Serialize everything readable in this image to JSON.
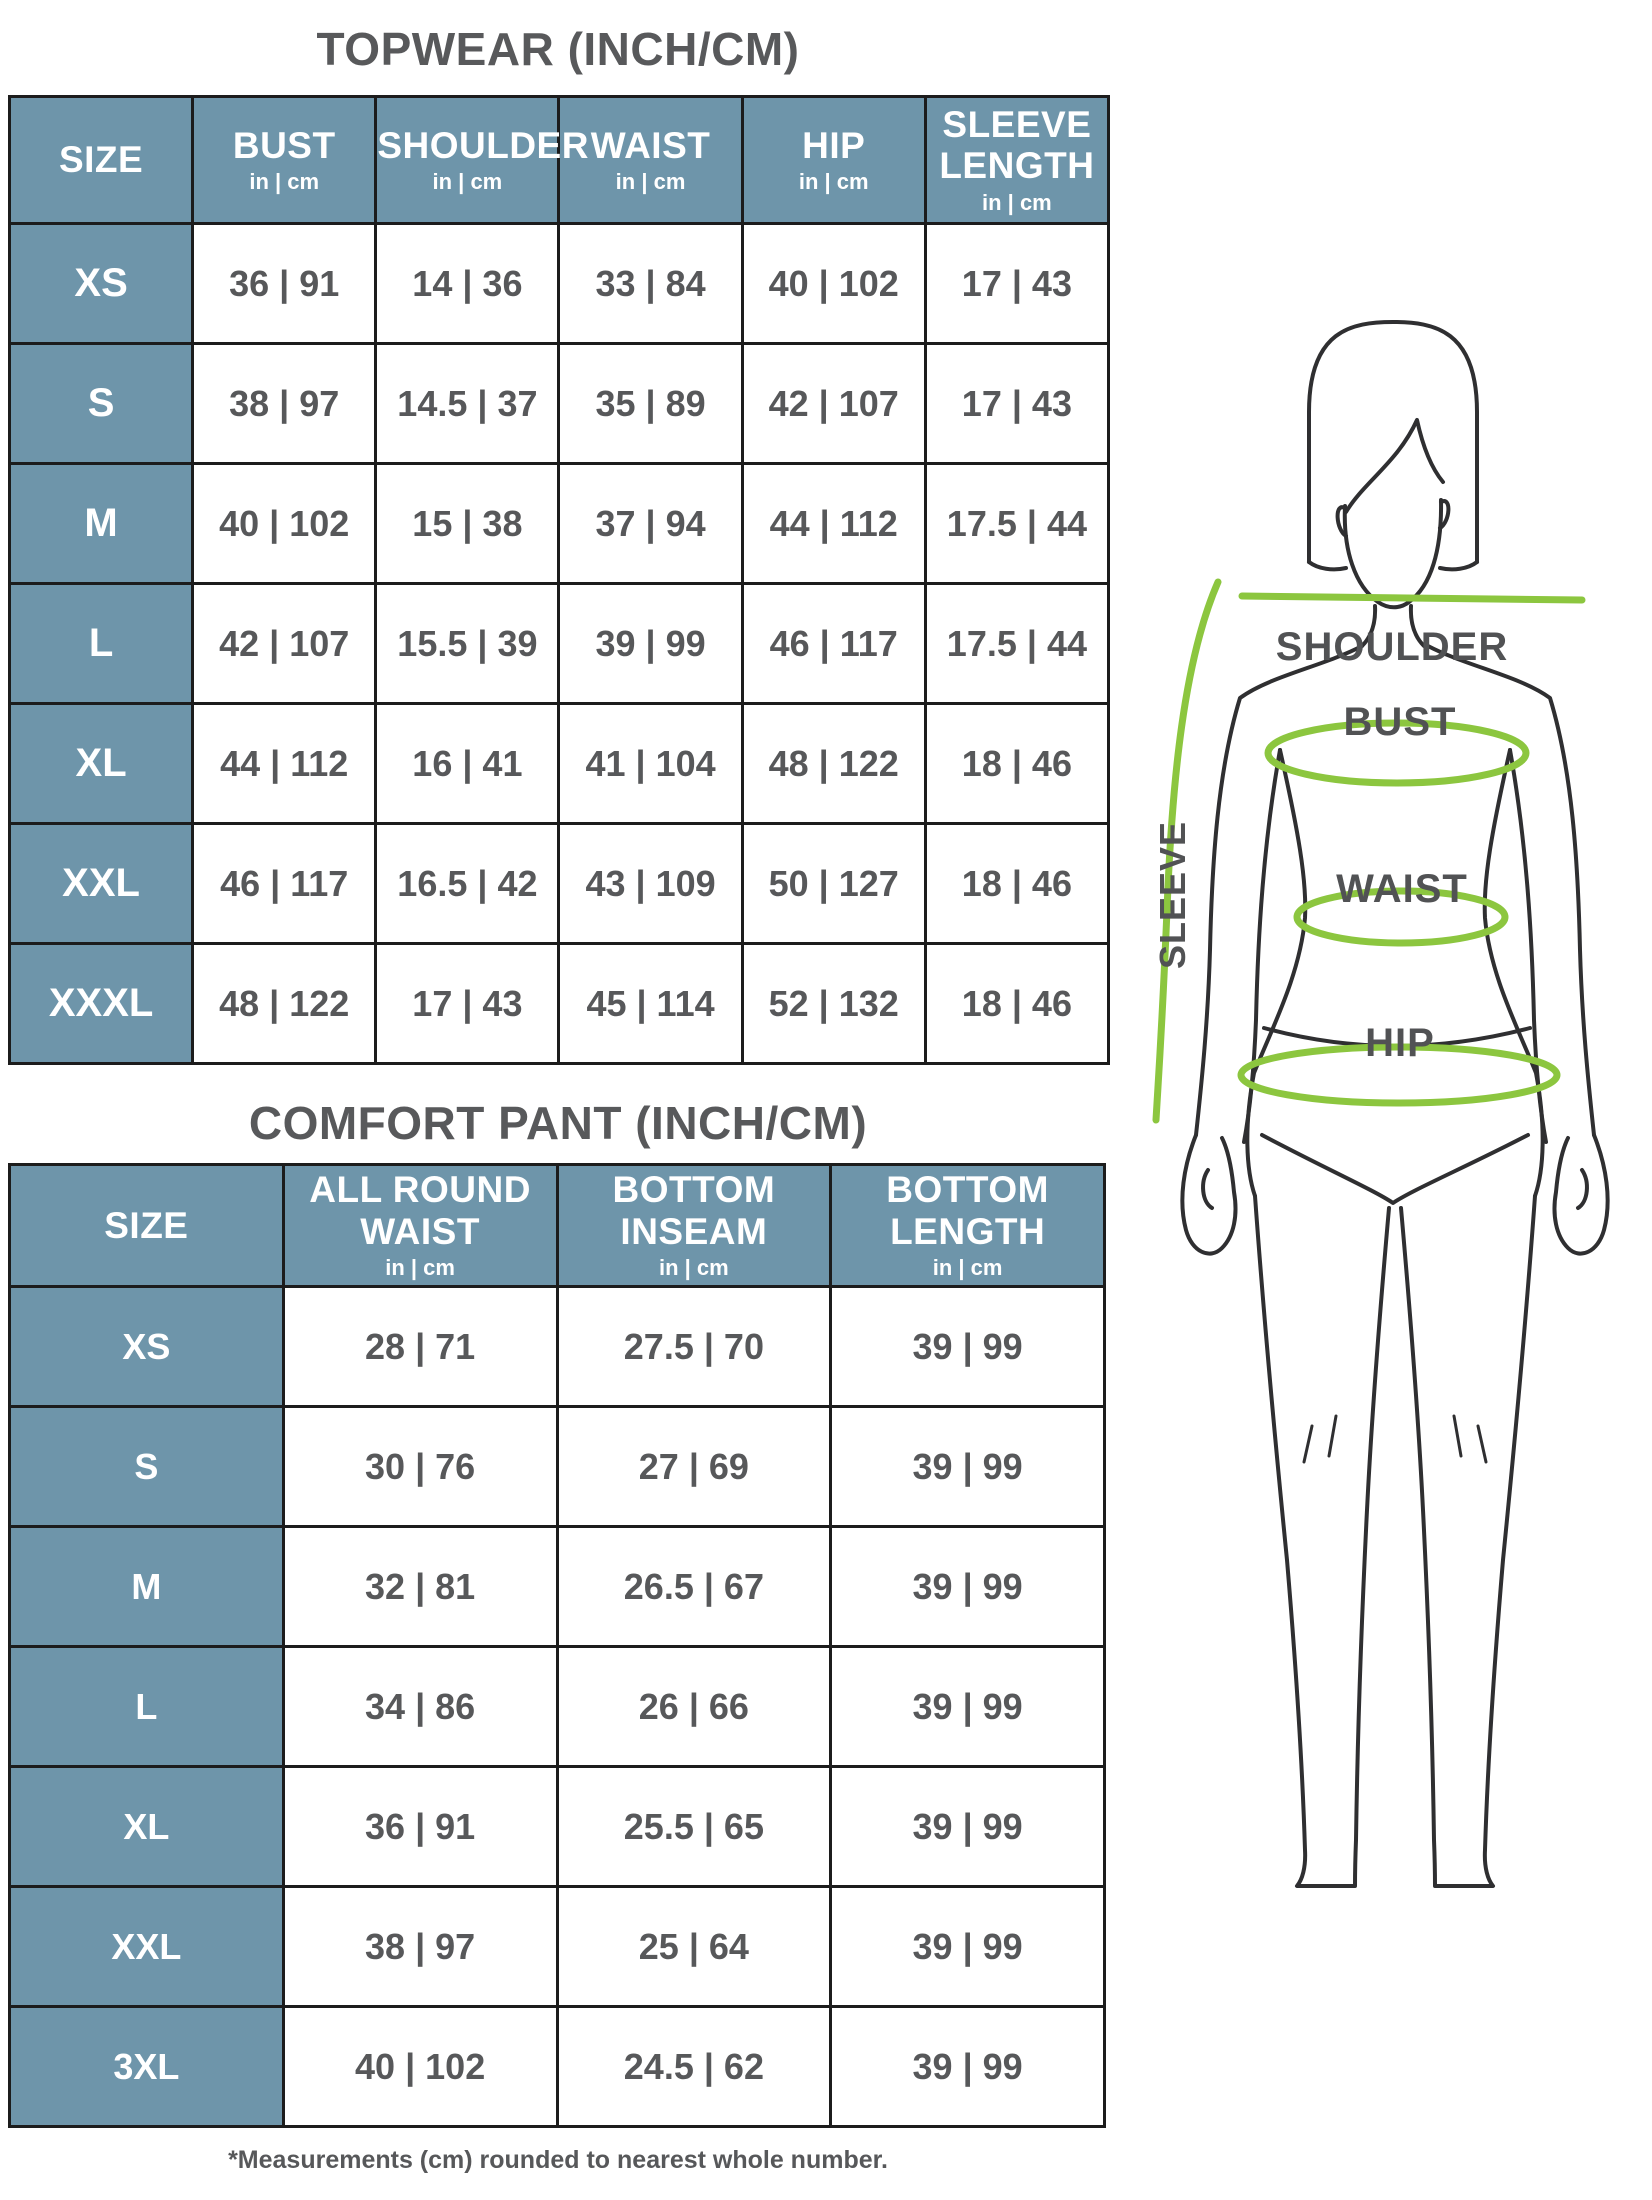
{
  "topwear": {
    "title": "TOPWEAR (INCH/CM)",
    "unit_label": "in | cm",
    "columns": [
      "SIZE",
      "BUST",
      "SHOULDER",
      "WAIST",
      "HIP",
      "SLEEVE\nLENGTH"
    ],
    "rows": [
      {
        "size": "XS",
        "values": [
          "36 | 91",
          "14 | 36",
          "33 | 84",
          "40 | 102",
          "17 | 43"
        ]
      },
      {
        "size": "S",
        "values": [
          "38 | 97",
          "14.5 | 37",
          "35 | 89",
          "42 | 107",
          "17 | 43"
        ]
      },
      {
        "size": "M",
        "values": [
          "40 | 102",
          "15 | 38",
          "37 | 94",
          "44 | 112",
          "17.5 | 44"
        ]
      },
      {
        "size": "L",
        "values": [
          "42 | 107",
          "15.5 | 39",
          "39 | 99",
          "46 | 117",
          "17.5 | 44"
        ]
      },
      {
        "size": "XL",
        "values": [
          "44 | 112",
          "16 | 41",
          "41 | 104",
          "48 | 122",
          "18 | 46"
        ]
      },
      {
        "size": "XXL",
        "values": [
          "46 | 117",
          "16.5 | 42",
          "43 | 109",
          "50 | 127",
          "18 | 46"
        ]
      },
      {
        "size": "XXXL",
        "values": [
          "48 | 122",
          "17 | 43",
          "45 | 114",
          "52 | 132",
          "18 | 46"
        ]
      }
    ]
  },
  "comfort_pant": {
    "title": "COMFORT PANT (INCH/CM)",
    "unit_label": "in | cm",
    "columns": [
      "SIZE",
      "ALL ROUND\nWAIST",
      "BOTTOM\nINSEAM",
      "BOTTOM\nLENGTH"
    ],
    "rows": [
      {
        "size": "XS",
        "values": [
          "28 | 71",
          "27.5 | 70",
          "39 | 99"
        ]
      },
      {
        "size": "S",
        "values": [
          "30 | 76",
          "27 | 69",
          "39 | 99"
        ]
      },
      {
        "size": "M",
        "values": [
          "32 | 81",
          "26.5 | 67",
          "39 | 99"
        ]
      },
      {
        "size": "L",
        "values": [
          "34 | 86",
          "26 | 66",
          "39 | 99"
        ]
      },
      {
        "size": "XL",
        "values": [
          "36 | 91",
          "25.5 | 65",
          "39 | 99"
        ]
      },
      {
        "size": "XXL",
        "values": [
          "38 | 97",
          "25 | 64",
          "39 | 99"
        ]
      },
      {
        "size": "3XL",
        "values": [
          "40 | 102",
          "24.5 | 62",
          "39 | 99"
        ]
      }
    ]
  },
  "figure": {
    "labels": {
      "shoulder": "SHOULDER",
      "bust": "BUST",
      "waist": "WAIST",
      "hip": "HIP",
      "sleeve": "SLEEVE"
    }
  },
  "footnote": "*Measurements (cm) rounded to nearest whole number.",
  "colors": {
    "header_bg": "#6e95aa",
    "table_border": "#1c1c1c",
    "value_text": "#57585a",
    "title_text": "#58595b",
    "accent_green": "#8cc63f",
    "figure_outline": "#2f2f31",
    "figure_label": "#515254"
  }
}
